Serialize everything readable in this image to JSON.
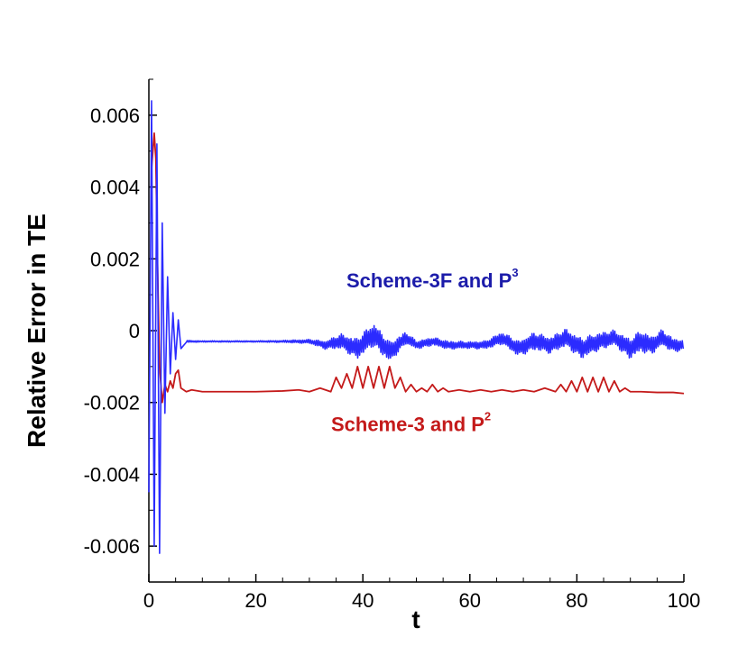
{
  "chart_data": {
    "type": "line",
    "title": "",
    "xlabel": "t",
    "ylabel": "Relative Error in TE",
    "xlim": [
      0,
      100
    ],
    "ylim": [
      -0.007,
      0.007
    ],
    "x_ticks": [
      0,
      20,
      40,
      60,
      80,
      100
    ],
    "x_tick_labels": [
      "0",
      "20",
      "40",
      "60",
      "80",
      "100"
    ],
    "y_ticks": [
      0.006,
      0.004,
      0.002,
      0,
      -0.002,
      -0.004,
      -0.006
    ],
    "y_tick_labels": [
      "0.006",
      "0.004",
      "0.002",
      "0",
      "-0.002",
      "-0.004",
      "-0.006"
    ],
    "grid": false,
    "legend": "none",
    "series": [
      {
        "name": "Scheme-3F and P",
        "name_superscript": "3",
        "color": "#2b2bff",
        "label_color": "#1c1caa",
        "x": [
          0,
          0.5,
          1,
          1.5,
          2,
          2.5,
          3,
          3.5,
          4,
          4.5,
          5,
          5.5,
          6,
          7,
          10,
          15,
          20,
          25,
          30,
          33,
          36,
          39,
          42,
          45,
          48,
          50,
          53,
          56,
          60,
          63,
          66,
          69,
          72,
          75,
          78,
          81,
          84,
          87,
          90,
          92,
          94,
          96,
          98,
          100
        ],
        "y": [
          -0.0045,
          0.0064,
          -0.006,
          0.0052,
          -0.0062,
          0.003,
          -0.0023,
          0.0015,
          -0.0012,
          0.0005,
          -0.0008,
          0.0003,
          -0.0005,
          -0.0003,
          -0.0003,
          -0.0003,
          -0.0003,
          -0.0003,
          -0.0003,
          -0.0004,
          -0.0003,
          -0.0005,
          -0.0001,
          -0.0006,
          -0.0002,
          -0.0004,
          -0.0003,
          -0.0004,
          -0.0004,
          -0.0004,
          -0.0002,
          -0.0005,
          -0.0003,
          -0.0004,
          -0.0002,
          -0.0005,
          -0.0003,
          -0.0002,
          -0.0005,
          -0.0003,
          -0.0004,
          -0.0002,
          -0.0004,
          -0.0004
        ],
        "oscillation_amplitude": [
          0.0,
          0.0,
          0.0,
          0.0,
          0.0,
          0.0,
          0.0,
          0.0,
          0.0,
          0.0,
          0.0,
          0.0,
          0.0,
          3e-05,
          2e-05,
          2e-05,
          2e-05,
          3e-05,
          6e-05,
          0.00012,
          0.00022,
          0.0003,
          0.00034,
          0.0003,
          0.00018,
          0.00012,
          0.00012,
          0.00012,
          0.0001,
          0.00012,
          0.00018,
          0.00022,
          0.00026,
          0.00024,
          0.00026,
          0.0003,
          0.00026,
          0.00022,
          0.0003,
          0.00032,
          0.00026,
          0.00024,
          0.0002,
          0.00016
        ]
      },
      {
        "name": "Scheme-3 and P",
        "name_superscript": "2",
        "color": "#c41a1a",
        "label_color": "#c41a1a",
        "x": [
          0.5,
          1,
          1.3,
          1.6,
          2,
          2.5,
          3,
          3.5,
          4,
          4.5,
          5,
          5.5,
          6,
          7,
          8,
          10,
          15,
          20,
          25,
          28,
          30,
          32,
          34,
          35,
          36,
          37,
          38,
          39,
          40,
          41,
          42,
          43,
          44,
          45,
          46,
          47,
          48,
          49,
          50,
          51,
          52,
          53,
          54,
          55,
          56,
          58,
          60,
          62,
          64,
          66,
          68,
          70,
          72,
          74,
          76,
          77,
          78,
          79,
          80,
          81,
          82,
          83,
          84,
          85,
          86,
          87,
          88,
          89,
          90,
          92,
          95,
          98,
          100
        ],
        "y": [
          0.0045,
          0.0055,
          0.0048,
          0.002,
          -0.001,
          -0.002,
          -0.0015,
          -0.0017,
          -0.0014,
          -0.0016,
          -0.0012,
          -0.0011,
          -0.0016,
          -0.0017,
          -0.00165,
          -0.0017,
          -0.0017,
          -0.0017,
          -0.00168,
          -0.00165,
          -0.0017,
          -0.0016,
          -0.0017,
          -0.0013,
          -0.0016,
          -0.0012,
          -0.0016,
          -0.001,
          -0.0016,
          -0.001,
          -0.0016,
          -0.001,
          -0.0016,
          -0.001,
          -0.0016,
          -0.0013,
          -0.0017,
          -0.0015,
          -0.0017,
          -0.0016,
          -0.0017,
          -0.0015,
          -0.0017,
          -0.0016,
          -0.0017,
          -0.00165,
          -0.0017,
          -0.00165,
          -0.0017,
          -0.00165,
          -0.0017,
          -0.00165,
          -0.0017,
          -0.0016,
          -0.0017,
          -0.0015,
          -0.0017,
          -0.0014,
          -0.0017,
          -0.0013,
          -0.0017,
          -0.0013,
          -0.0017,
          -0.0013,
          -0.0017,
          -0.0014,
          -0.0017,
          -0.0016,
          -0.0017,
          -0.0017,
          -0.00172,
          -0.00172,
          -0.00175
        ]
      }
    ],
    "annotations": [
      {
        "text": "Scheme-3F and P",
        "superscript": "3",
        "x": 53,
        "y": 0.0012,
        "color": "#1c1caa"
      },
      {
        "text": "Scheme-3 and P",
        "superscript": "2",
        "x": 49,
        "y": -0.0028,
        "color": "#c41a1a"
      }
    ]
  }
}
